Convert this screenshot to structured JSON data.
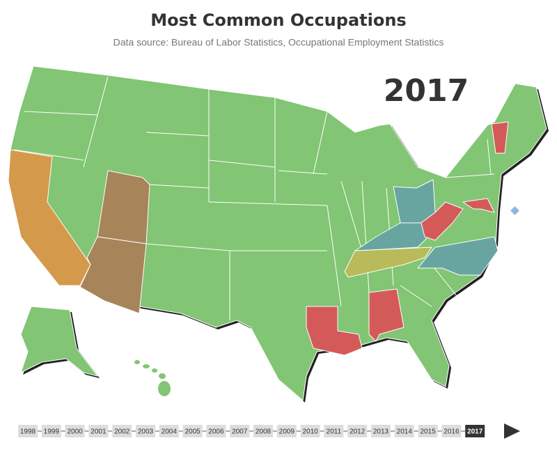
{
  "header": {
    "title": "Most Common Occupations",
    "subtitle": "Data source: Bureau of Labor Statistics, Occupational Employment Statistics"
  },
  "map": {
    "year_label": "2017"
  },
  "timeline": {
    "years": [
      "1998",
      "1999",
      "2000",
      "2001",
      "2002",
      "2003",
      "2004",
      "2005",
      "2006",
      "2007",
      "2008",
      "2009",
      "2010",
      "2011",
      "2012",
      "2013",
      "2014",
      "2015",
      "2016",
      "2017"
    ],
    "selected": "2017"
  }
}
